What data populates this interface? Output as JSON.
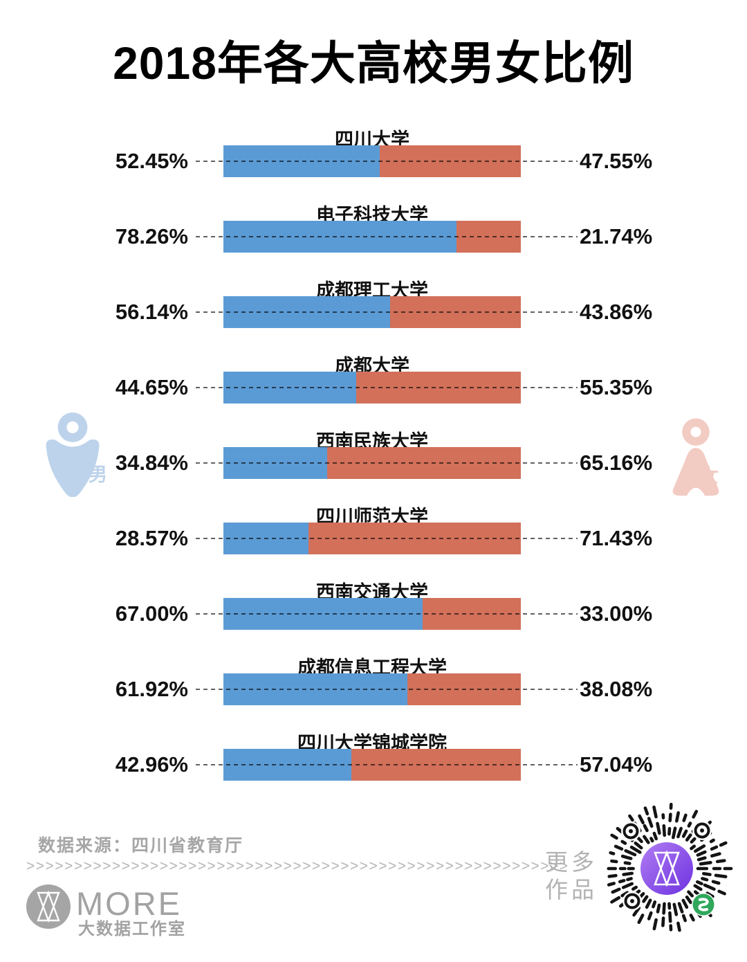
{
  "title": "2018年各大高校男女比例",
  "legend": {
    "male_label": "男",
    "female_label": "女"
  },
  "colors": {
    "male_bar": "#5b9bd5",
    "female_bar": "#d2705a",
    "male_icon": "#bdd3eb",
    "female_icon": "#f2cbc2",
    "qr_purple_light": "#b07df2",
    "qr_purple_dark": "#6d32e0",
    "qr_green": "#2fa85c"
  },
  "chart_data": {
    "type": "bar",
    "stacked": true,
    "orientation": "horizontal",
    "title": "2018年各大高校男女比例",
    "series": [
      {
        "name": "男",
        "color": "#5b9bd5"
      },
      {
        "name": "女",
        "color": "#d2705a"
      }
    ],
    "rows": [
      {
        "university": "四川大学",
        "male_value": 52.45,
        "female_value": 47.55,
        "male_label": "52.45%",
        "female_label": "47.55%"
      },
      {
        "university": "电子科技大学",
        "male_value": 78.26,
        "female_value": 21.74,
        "male_label": "78.26%",
        "female_label": "21.74%"
      },
      {
        "university": "成都理工大学",
        "male_value": 56.14,
        "female_value": 43.86,
        "male_label": "56.14%",
        "female_label": "43.86%"
      },
      {
        "university": "成都大学",
        "male_value": 44.65,
        "female_value": 55.35,
        "male_label": "44.65%",
        "female_label": "55.35%"
      },
      {
        "university": "西南民族大学",
        "male_value": 34.84,
        "female_value": 65.16,
        "male_label": "34.84%",
        "female_label": "65.16%"
      },
      {
        "university": "四川师范大学",
        "male_value": 28.57,
        "female_value": 71.43,
        "male_label": "28.57%",
        "female_label": "71.43%"
      },
      {
        "university": "西南交通大学",
        "male_value": 67.0,
        "female_value": 33.0,
        "male_label": "67.00%",
        "female_label": "33.00%"
      },
      {
        "university": "成都信息工程大学",
        "male_value": 61.92,
        "female_value": 38.08,
        "male_label": "61.92%",
        "female_label": "38.08%"
      },
      {
        "university": "四川大学锦城学院",
        "male_value": 42.96,
        "female_value": 57.04,
        "male_label": "42.96%",
        "female_label": "57.04%"
      }
    ]
  },
  "footer": {
    "source": "数据来源：四川省教育厅",
    "arrows": ">>>>>>>>>>>>>>>>>>>>>>>>>>>>>>>>>>>>>>>>>>>>>>>>>>>>>>>>>",
    "logo_text": "MORE",
    "logo_subtext": "大数据工作室",
    "more_works_line1": "更多",
    "more_works_line2": "作品"
  }
}
